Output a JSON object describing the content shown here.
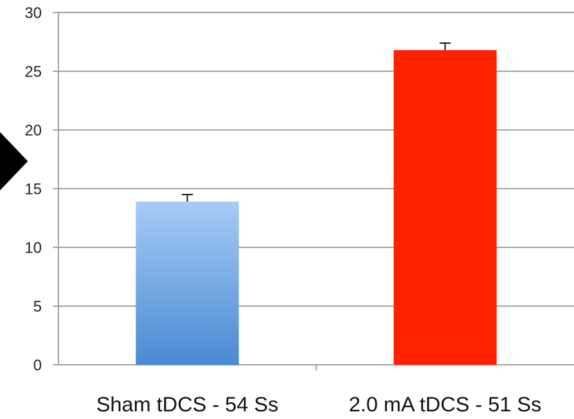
{
  "chart_data": {
    "type": "bar",
    "categories": [
      "Sham tDCS - 54 Ss",
      "2.0 mA tDCS - 51 Ss"
    ],
    "values": [
      13.9,
      26.8
    ],
    "errors": [
      0.6,
      0.6
    ],
    "colors": [
      "#5b9be0",
      "#ff2200"
    ],
    "ylim": [
      0,
      30
    ],
    "yticks": [
      0,
      5,
      10,
      15,
      20,
      25,
      30
    ],
    "grid": true,
    "title": "",
    "xlabel": "",
    "ylabel": ""
  }
}
